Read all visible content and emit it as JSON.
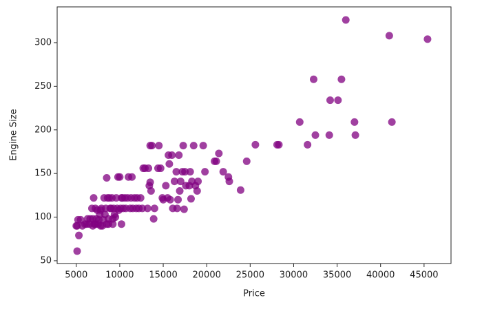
{
  "chart_data": {
    "type": "scatter",
    "xlabel": "Price",
    "ylabel": "Engine Size",
    "color": "#800080",
    "x": [
      5100,
      5300,
      5200,
      5100,
      5500,
      5700,
      6000,
      6200,
      6300,
      6500,
      6600,
      6800,
      6900,
      7000,
      7100,
      7200,
      7300,
      7400,
      7500,
      7600,
      7700,
      7800,
      7900,
      8000,
      8100,
      8200,
      8300,
      8400,
      8500,
      8600,
      8700,
      8800,
      8900,
      9000,
      9100,
      9200,
      9300,
      9400,
      9500,
      9600,
      9700,
      9800,
      9900,
      10000,
      10100,
      10200,
      10300,
      10400,
      10600,
      10700,
      10900,
      11000,
      11200,
      11300,
      11400,
      11500,
      11700,
      11900,
      12000,
      12200,
      12400,
      12600,
      12700,
      12900,
      13200,
      13300,
      13400,
      13500,
      13600,
      13500,
      13700,
      13900,
      14000,
      14400,
      14500,
      14700,
      14900,
      15000,
      15300,
      15500,
      15600,
      15700,
      15800,
      16000,
      16100,
      16300,
      16500,
      16600,
      16700,
      16800,
      16900,
      17000,
      17200,
      17300,
      17400,
      17500,
      17600,
      18000,
      18100,
      18200,
      18300,
      18500,
      18700,
      18900,
      19000,
      19600,
      19800,
      20900,
      21100,
      21400,
      21900,
      22500,
      22600,
      23900,
      24600,
      25600,
      28100,
      28300,
      30700,
      31600,
      32300,
      32500,
      34100,
      34200,
      35100,
      35500,
      36000,
      37000,
      37100,
      41000,
      41300,
      45400,
      7800,
      8700,
      5000,
      6900,
      7200,
      9200,
      10200,
      8500
    ],
    "values": [
      61,
      79,
      97,
      90,
      97,
      90,
      92,
      92,
      98,
      92,
      98,
      110,
      98,
      122,
      92,
      92,
      98,
      108,
      92,
      97,
      103,
      108,
      110,
      90,
      97,
      122,
      103,
      110,
      92,
      122,
      98,
      122,
      110,
      110,
      122,
      98,
      110,
      103,
      100,
      122,
      110,
      146,
      108,
      146,
      110,
      122,
      122,
      110,
      122,
      110,
      122,
      146,
      110,
      122,
      146,
      110,
      122,
      110,
      122,
      110,
      122,
      110,
      156,
      156,
      110,
      156,
      136,
      140,
      130,
      182,
      182,
      98,
      110,
      156,
      182,
      156,
      122,
      120,
      136,
      122,
      171,
      161,
      120,
      171,
      110,
      141,
      152,
      110,
      120,
      171,
      130,
      141,
      152,
      182,
      109,
      152,
      136,
      136,
      152,
      121,
      141,
      182,
      136,
      130,
      141,
      182,
      152,
      164,
      164,
      173,
      152,
      146,
      141,
      131,
      164,
      183,
      183,
      183,
      209,
      183,
      258,
      194,
      194,
      234,
      234,
      258,
      326,
      209,
      194,
      308,
      209,
      304,
      90,
      92,
      90,
      90,
      110,
      92,
      92,
      145
    ],
    "xlim": [
      2800,
      48100
    ],
    "ylim": [
      46.8,
      341
    ],
    "xticks": [
      5000,
      10000,
      15000,
      20000,
      25000,
      30000,
      35000,
      40000,
      45000
    ],
    "yticks": [
      50,
      100,
      150,
      200,
      250,
      300
    ]
  }
}
